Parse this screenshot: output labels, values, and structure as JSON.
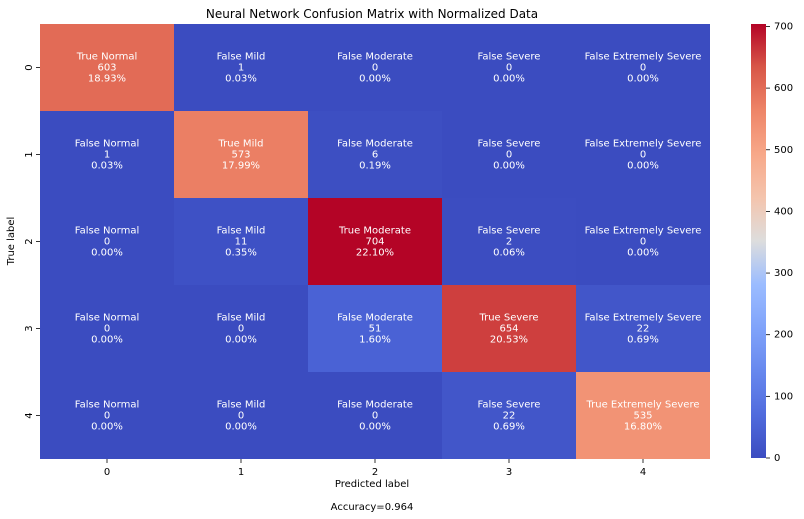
{
  "chart_data": {
    "type": "heatmap",
    "title": "Neural Network Confusion Matrix with Normalized Data",
    "xlabel": "Predicted label",
    "ylabel": "True label",
    "x_ticks": [
      "0",
      "1",
      "2",
      "3",
      "4"
    ],
    "y_ticks": [
      "0",
      "1",
      "2",
      "3",
      "4"
    ],
    "footer": "Accuracy=0.964",
    "colormap": "coolwarm",
    "color_range": [
      0,
      704
    ],
    "colorbar_ticks": [
      "0",
      "100",
      "200",
      "300",
      "400",
      "500",
      "600",
      "700"
    ],
    "cells": [
      [
        {
          "name": "True Normal",
          "count": "603",
          "pct": "18.93%",
          "value": 603
        },
        {
          "name": "False Mild",
          "count": "1",
          "pct": "0.03%",
          "value": 1
        },
        {
          "name": "False Moderate",
          "count": "0",
          "pct": "0.00%",
          "value": 0
        },
        {
          "name": "False Severe",
          "count": "0",
          "pct": "0.00%",
          "value": 0
        },
        {
          "name": "False Extremely Severe",
          "count": "0",
          "pct": "0.00%",
          "value": 0
        }
      ],
      [
        {
          "name": "False Normal",
          "count": "1",
          "pct": "0.03%",
          "value": 1
        },
        {
          "name": "True Mild",
          "count": "573",
          "pct": "17.99%",
          "value": 573
        },
        {
          "name": "False Moderate",
          "count": "6",
          "pct": "0.19%",
          "value": 6
        },
        {
          "name": "False Severe",
          "count": "0",
          "pct": "0.00%",
          "value": 0
        },
        {
          "name": "False Extremely Severe",
          "count": "0",
          "pct": "0.00%",
          "value": 0
        }
      ],
      [
        {
          "name": "False Normal",
          "count": "0",
          "pct": "0.00%",
          "value": 0
        },
        {
          "name": "False Mild",
          "count": "11",
          "pct": "0.35%",
          "value": 11
        },
        {
          "name": "True Moderate",
          "count": "704",
          "pct": "22.10%",
          "value": 704
        },
        {
          "name": "False Severe",
          "count": "2",
          "pct": "0.06%",
          "value": 2
        },
        {
          "name": "False Extremely Severe",
          "count": "0",
          "pct": "0.00%",
          "value": 0
        }
      ],
      [
        {
          "name": "False Normal",
          "count": "0",
          "pct": "0.00%",
          "value": 0
        },
        {
          "name": "False Mild",
          "count": "0",
          "pct": "0.00%",
          "value": 0
        },
        {
          "name": "False Moderate",
          "count": "51",
          "pct": "1.60%",
          "value": 51
        },
        {
          "name": "True Severe",
          "count": "654",
          "pct": "20.53%",
          "value": 654
        },
        {
          "name": "False Extremely Severe",
          "count": "22",
          "pct": "0.69%",
          "value": 22
        }
      ],
      [
        {
          "name": "False Normal",
          "count": "0",
          "pct": "0.00%",
          "value": 0
        },
        {
          "name": "False Mild",
          "count": "0",
          "pct": "0.00%",
          "value": 0
        },
        {
          "name": "False Moderate",
          "count": "0",
          "pct": "0.00%",
          "value": 0
        },
        {
          "name": "False Severe",
          "count": "22",
          "pct": "0.69%",
          "value": 22
        },
        {
          "name": "True Extremely Severe",
          "count": "535",
          "pct": "16.80%",
          "value": 535
        }
      ]
    ]
  }
}
